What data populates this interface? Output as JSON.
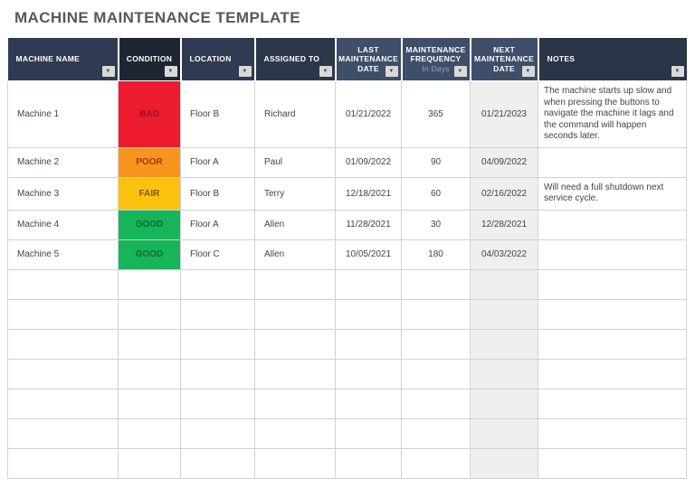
{
  "page": {
    "title": "MACHINE MAINTENANCE TEMPLATE"
  },
  "icons": {
    "filter_dropdown": "▼"
  },
  "condition_styles": {
    "BAD": {
      "bg": "#ec1b2e",
      "text": "#9e1020"
    },
    "POOR": {
      "bg": "#f8941e",
      "text": "#9c3a12"
    },
    "FAIR": {
      "bg": "#fdc110",
      "text": "#7a5c00"
    },
    "GOOD": {
      "bg": "#17b45a",
      "text": "#0b6b35"
    }
  },
  "table": {
    "columns": [
      {
        "key": "machine_name",
        "lines": [
          "MACHINE NAME"
        ],
        "sub": "",
        "header_bg": "#2f3b52",
        "header_align": "left",
        "cell_align": "left"
      },
      {
        "key": "condition",
        "lines": [
          "CONDITION"
        ],
        "sub": "",
        "header_bg": "#1e2634",
        "header_align": "center",
        "cell_align": "center"
      },
      {
        "key": "location",
        "lines": [
          "LOCATION"
        ],
        "sub": "",
        "header_bg": "#2f3b52",
        "header_align": "left",
        "cell_align": "left"
      },
      {
        "key": "assigned_to",
        "lines": [
          "ASSIGNED TO"
        ],
        "sub": "",
        "header_bg": "#2c374a",
        "header_align": "left",
        "cell_align": "left"
      },
      {
        "key": "last_maintenance_date",
        "lines": [
          "LAST",
          "MAINTENANCE",
          "DATE"
        ],
        "sub": "",
        "header_bg": "#3f4e69",
        "header_align": "center",
        "cell_align": "center"
      },
      {
        "key": "maintenance_frequency",
        "lines": [
          "MAINTENANCE",
          "FREQUENCY"
        ],
        "sub": "In Days",
        "header_bg": "#3f4e69",
        "header_align": "center",
        "cell_align": "center"
      },
      {
        "key": "next_maintenance_date",
        "lines": [
          "NEXT",
          "MAINTENANCE",
          "DATE"
        ],
        "sub": "",
        "header_bg": "#3f4e69",
        "header_align": "center",
        "cell_align": "center"
      },
      {
        "key": "notes",
        "lines": [
          "NOTES"
        ],
        "sub": "",
        "header_bg": "#2a3547",
        "header_align": "left",
        "cell_align": "left"
      }
    ],
    "rows": [
      {
        "machine_name": "Machine 1",
        "condition": "BAD",
        "location": "Floor B",
        "assigned_to": "Richard",
        "last_maintenance_date": "01/21/2022",
        "maintenance_frequency": "365",
        "next_maintenance_date": "01/21/2023",
        "notes": "The machine starts up slow and when pressing the buttons to navigate the machine it lags and the command will happen seconds later."
      },
      {
        "machine_name": "Machine 2",
        "condition": "POOR",
        "location": "Floor A",
        "assigned_to": "Paul",
        "last_maintenance_date": "01/09/2022",
        "maintenance_frequency": "90",
        "next_maintenance_date": "04/09/2022",
        "notes": ""
      },
      {
        "machine_name": "Machine 3",
        "condition": "FAIR",
        "location": "Floor B",
        "assigned_to": "Terry",
        "last_maintenance_date": "12/18/2021",
        "maintenance_frequency": "60",
        "next_maintenance_date": "02/16/2022",
        "notes": "Will need a full shutdown next service cycle."
      },
      {
        "machine_name": "Machine 4",
        "condition": "GOOD",
        "location": "Floor A",
        "assigned_to": "Allen",
        "last_maintenance_date": "11/28/2021",
        "maintenance_frequency": "30",
        "next_maintenance_date": "12/28/2021",
        "notes": ""
      },
      {
        "machine_name": "Machine 5",
        "condition": "GOOD",
        "location": "Floor C",
        "assigned_to": "Allen",
        "last_maintenance_date": "10/05/2021",
        "maintenance_frequency": "180",
        "next_maintenance_date": "04/03/2022",
        "notes": ""
      }
    ],
    "empty_row_count": 7
  }
}
